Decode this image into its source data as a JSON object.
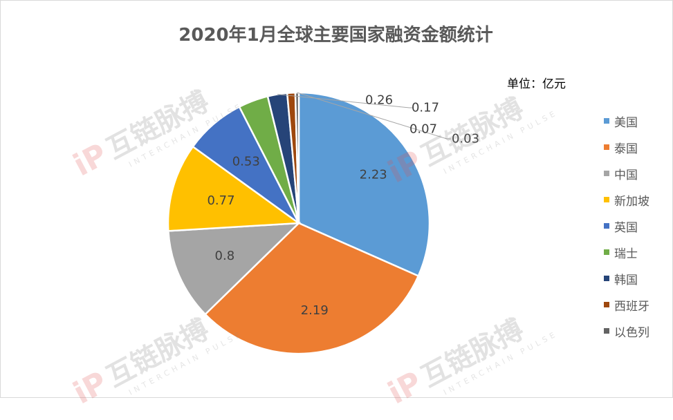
{
  "chart_data": {
    "type": "pie",
    "title": "2020年1月全球主要国家融资金额统计",
    "unit_label": "单位：亿元",
    "categories": [
      "美国",
      "泰国",
      "中国",
      "新加坡",
      "英国",
      "瑞士",
      "韩国",
      "西班牙",
      "以色列"
    ],
    "values": [
      2.23,
      2.19,
      0.8,
      0.77,
      0.53,
      0.26,
      0.17,
      0.07,
      0.03
    ],
    "value_labels": [
      "2.23",
      "2.19",
      "0.8",
      "0.77",
      "0.53",
      "0.26",
      "0.17",
      "0.07",
      "0.03"
    ],
    "colors": [
      "#5B9BD5",
      "#ED7D31",
      "#A5A5A5",
      "#FFC000",
      "#4472C4",
      "#70AD47",
      "#264478",
      "#9E480E",
      "#636363"
    ],
    "legend_position": "right"
  },
  "watermark": {
    "logo": "iP",
    "text": "互链脉搏",
    "sub": "INTERCHAIN PULSE"
  }
}
